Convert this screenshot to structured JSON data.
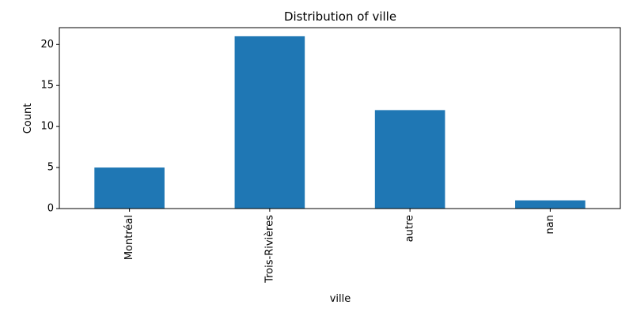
{
  "chart_data": {
    "type": "bar",
    "title": "Distribution of ville",
    "xlabel": "ville",
    "ylabel": "Count",
    "categories": [
      "Montréal",
      "Trois-Rivières",
      "autre",
      "nan"
    ],
    "values": [
      5,
      21,
      12,
      1
    ],
    "ylim": [
      0,
      22.05
    ],
    "yticks": [
      0,
      5,
      10,
      15,
      20
    ],
    "bar_color": "#1f77b4",
    "grid": false,
    "legend": "none"
  }
}
